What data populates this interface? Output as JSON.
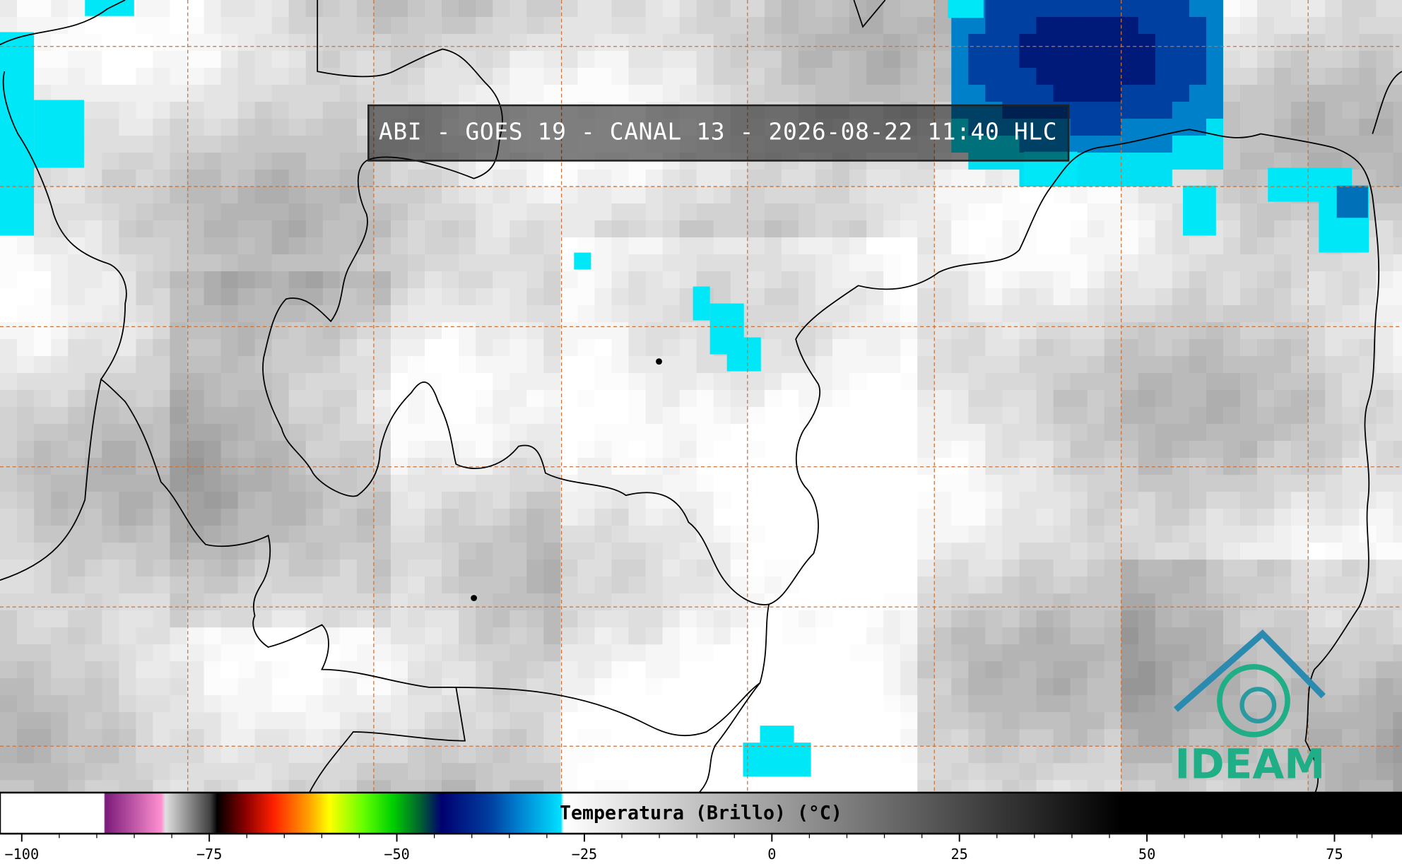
{
  "title": "ABI - GOES 19 - CANAL 13 - 2026-08-22 11:40 HLC",
  "logo": "IDEAM",
  "colorbar": {
    "label": "Temperatura (Brillo) (°C)",
    "lim": [
      -102.9,
      84
    ],
    "ticks": [
      {
        "value": -100,
        "label": "−100"
      },
      {
        "value": -75,
        "label": "−75"
      },
      {
        "value": -50,
        "label": "−50"
      },
      {
        "value": -25,
        "label": "−25"
      },
      0,
      25,
      50,
      75
    ]
  }
}
